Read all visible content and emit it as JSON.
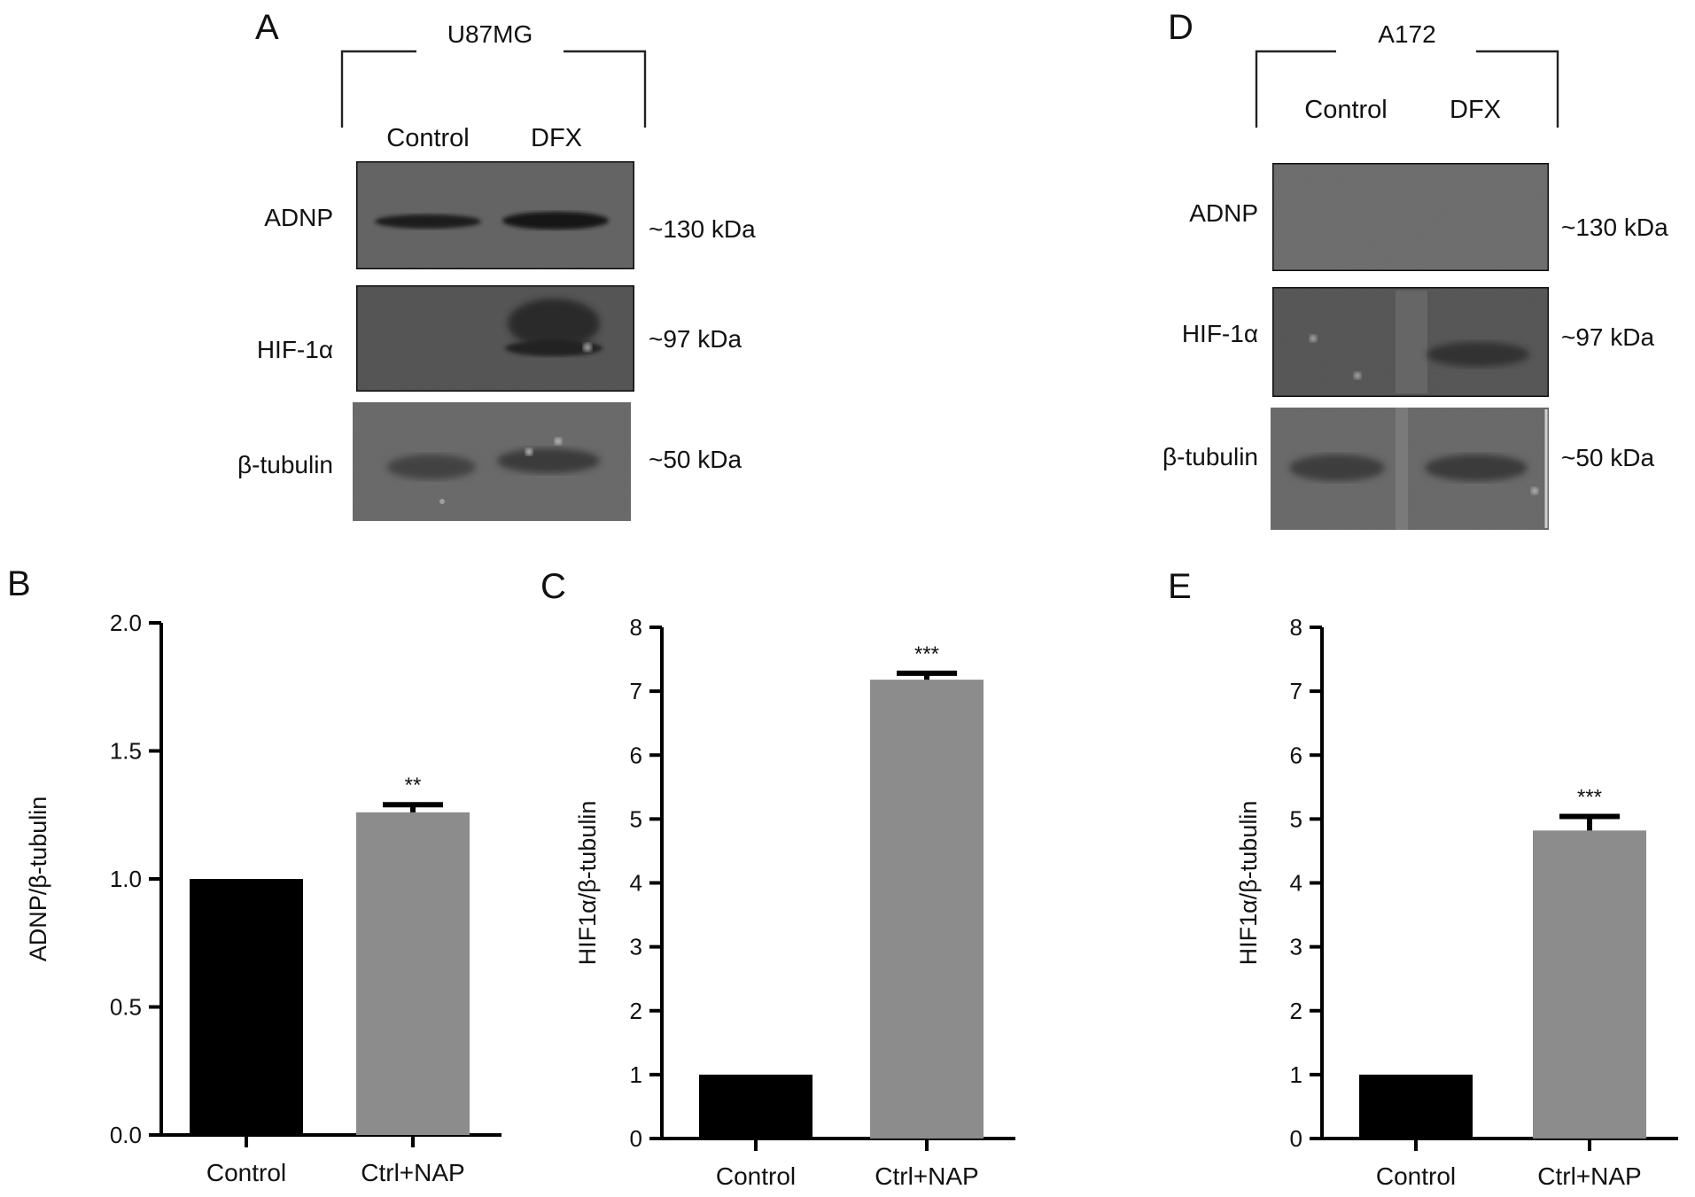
{
  "colors": {
    "control_bar": "#000000",
    "treatment_bar": "#8c8c8c",
    "blot_background": "#636363",
    "band": "#1c1c1c",
    "axis": "#000000"
  },
  "blots": [
    {
      "panel": "A",
      "cell_line": "U87MG",
      "lanes": [
        "Control",
        "DFX"
      ],
      "rows": [
        {
          "protein": "ADNP",
          "kda": "~130 kDa"
        },
        {
          "protein": "HIF-1α",
          "kda": "~97 kDa"
        },
        {
          "protein": "β-tubulin",
          "kda": "~50 kDa"
        }
      ]
    },
    {
      "panel": "D",
      "cell_line": "A172",
      "lanes": [
        "Control",
        "DFX"
      ],
      "rows": [
        {
          "protein": "ADNP",
          "kda": "~130 kDa"
        },
        {
          "protein": "HIF-1α",
          "kda": "~97 kDa"
        },
        {
          "protein": "β-tubulin",
          "kda": "~50 kDa"
        }
      ]
    }
  ],
  "chart_data": [
    {
      "panel": "B",
      "type": "bar",
      "categories": [
        "Control",
        "Ctrl+NAP"
      ],
      "values": [
        1.0,
        1.26
      ],
      "errors": [
        0,
        0.03
      ],
      "significance": [
        "",
        "**"
      ],
      "ylabel": "ADNP/β-tubulin",
      "ylim": [
        0,
        2.0
      ],
      "yticks": [
        "0.0",
        "0.5",
        "1.0",
        "1.5",
        "2.0"
      ],
      "grid": false
    },
    {
      "panel": "C",
      "type": "bar",
      "categories": [
        "Control",
        "Ctrl+NAP"
      ],
      "values": [
        1.0,
        7.18
      ],
      "errors": [
        0,
        0.1
      ],
      "significance": [
        "",
        "***"
      ],
      "ylabel": "HIF1α/β-tubulin",
      "ylim": [
        0,
        8
      ],
      "yticks": [
        "0",
        "1",
        "2",
        "3",
        "4",
        "5",
        "6",
        "7",
        "8"
      ],
      "grid": false
    },
    {
      "panel": "E",
      "type": "bar",
      "categories": [
        "Control",
        "Ctrl+NAP"
      ],
      "values": [
        1.0,
        4.82
      ],
      "errors": [
        0,
        0.22
      ],
      "significance": [
        "",
        "***"
      ],
      "ylabel": "HIF1α/β-tubulin",
      "ylim": [
        0,
        8
      ],
      "yticks": [
        "0",
        "1",
        "2",
        "3",
        "4",
        "5",
        "6",
        "7",
        "8"
      ],
      "grid": false
    }
  ]
}
